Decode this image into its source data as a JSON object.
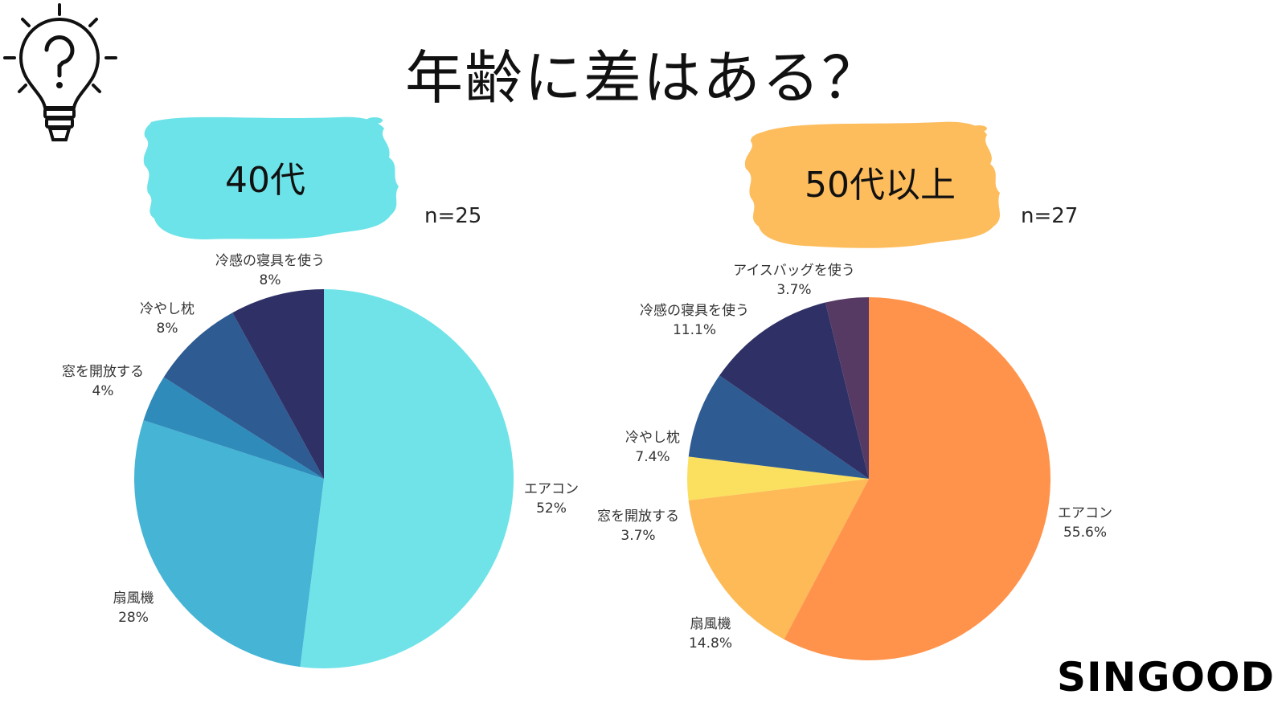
{
  "page": {
    "title": "年齢に差はある？",
    "logo": "SINGOOD"
  },
  "chart_data": [
    {
      "type": "pie",
      "title": "40代",
      "n_label": "n=25",
      "categories": [
        "エアコン",
        "扇風機",
        "窓を開放する",
        "冷やし枕",
        "冷感の寝具を使う"
      ],
      "values": [
        52,
        28,
        4,
        8,
        8
      ],
      "value_labels": [
        "52%",
        "28%",
        "4%",
        "8%",
        "8%"
      ],
      "colors": [
        "#6FE3E8",
        "#45B4D5",
        "#2F8BBA",
        "#2E5B92",
        "#2F3166"
      ],
      "label_color": "#333333",
      "badge_color": "#6CE3E8"
    },
    {
      "type": "pie",
      "title": "50代以上",
      "n_label": "n=27",
      "categories": [
        "エアコン",
        "扇風機",
        "窓を開放する",
        "冷やし枕",
        "冷感の寝具を使う",
        "アイスバッグを使う"
      ],
      "values": [
        55.6,
        14.8,
        3.7,
        7.4,
        11.1,
        3.7
      ],
      "value_labels": [
        "55.6%",
        "14.8%",
        "3.7%",
        "7.4%",
        "11.1%",
        "3.7%"
      ],
      "colors": [
        "#FF934C",
        "#FDBA57",
        "#FBDF5E",
        "#2E5B92",
        "#2F3166",
        "#563A63",
        "#845472"
      ],
      "label_color": "#333333",
      "badge_color": "#FDBD5D"
    }
  ],
  "icons": {
    "idea": "lightbulb-question-icon"
  }
}
